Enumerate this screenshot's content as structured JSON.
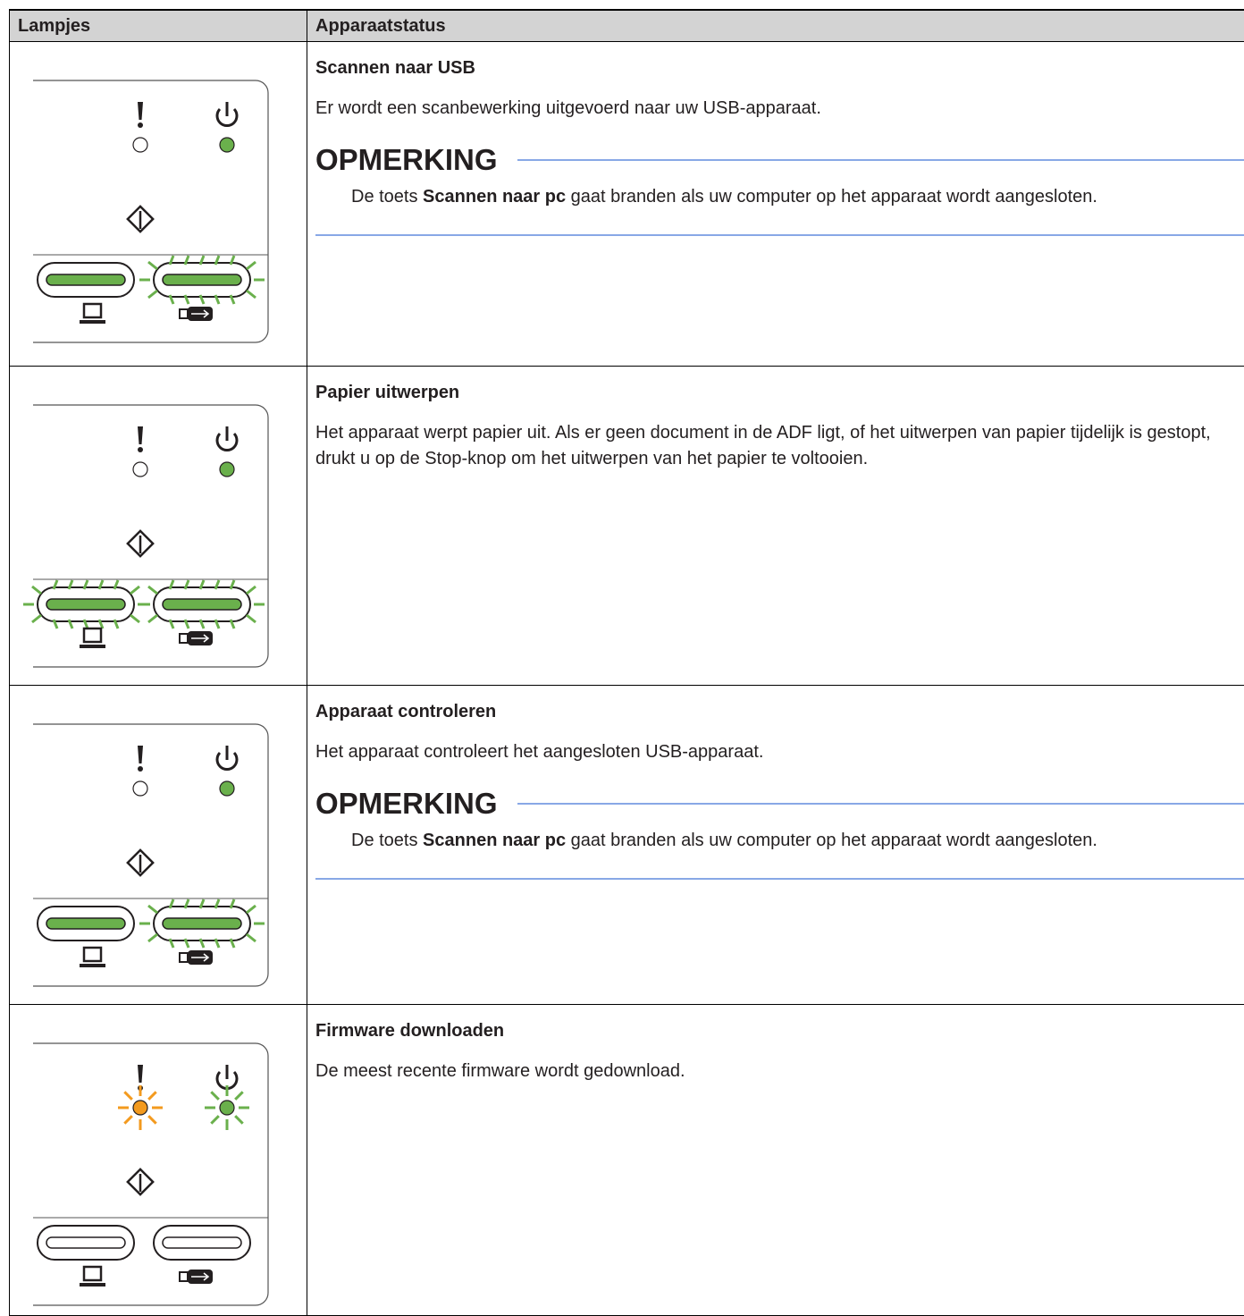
{
  "header": {
    "col1": "Lampjes",
    "col2": "Apparaatstatus"
  },
  "rows": [
    {
      "title": "Scannen naar USB",
      "text": "Er wordt een scanbewerking uitgevoerd naar uw USB-apparaat.",
      "note": {
        "heading": "OPMERKING",
        "before": "De toets ",
        "bold": "Scannen naar pc",
        "after": " gaat branden als uw computer op het apparaat wordt aangesloten."
      }
    },
    {
      "title": "Papier uitwerpen",
      "text": "Het apparaat werpt papier uit. Als er geen document in de ADF ligt, of het uitwerpen van papier tijdelijk is gestopt, drukt u op de Stop-knop om het uitwerpen van het papier te voltooien."
    },
    {
      "title": "Apparaat controleren",
      "text": "Het apparaat controleert het aangesloten USB-apparaat.",
      "note": {
        "heading": "OPMERKING",
        "before": "De toets ",
        "bold": "Scannen naar pc",
        "after": " gaat branden als uw computer op het apparaat wordt aangesloten."
      }
    },
    {
      "title": "Firmware downloaden",
      "text": "De meest recente firmware wordt gedownload."
    }
  ]
}
